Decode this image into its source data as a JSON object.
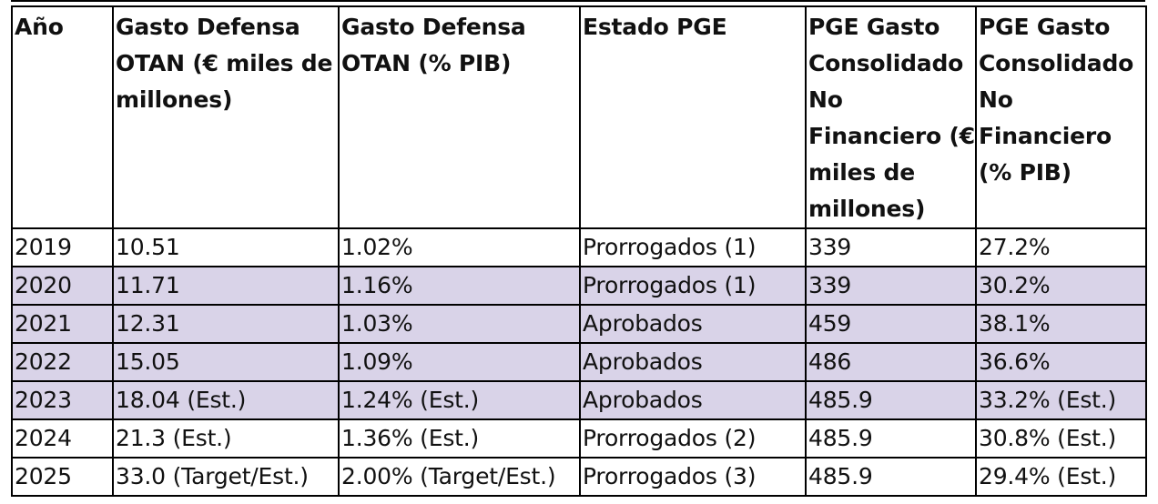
{
  "table": {
    "headers": [
      "Año",
      "Gasto Defensa OTAN (€ miles de millones)",
      "Gasto Defensa OTAN (% PIB)",
      "Estado PGE",
      "PGE Gasto Consolidado No Financiero (€ miles de millones)",
      "PGE Gasto Consolidado No Financiero (% PIB)"
    ],
    "rows": [
      [
        "2019",
        "10.51",
        "1.02%",
        "Prorrogados (1)",
        "339",
        "27.2%"
      ],
      [
        "2020",
        "11.71",
        "1.16%",
        "Prorrogados (1)",
        "339",
        "30.2%"
      ],
      [
        "2021",
        "12.31",
        "1.03%",
        "Aprobados",
        "459",
        "38.1%"
      ],
      [
        "2022",
        "15.05",
        "1.09%",
        "Aprobados",
        "486",
        "36.6%"
      ],
      [
        "2023",
        "18.04 (Est.)",
        "1.24% (Est.)",
        "Aprobados",
        "485.9",
        "33.2% (Est.)"
      ],
      [
        "2024",
        "21.3 (Est.)",
        "1.36% (Est.)",
        "Prorrogados (2)",
        "485.9",
        "30.8% (Est.)"
      ],
      [
        "2025",
        "33.0 (Target/Est.)",
        "2.00% (Target/Est.)",
        "Prorrogados (3)",
        "485.9",
        "29.4% (Est.)"
      ]
    ]
  },
  "colors": {
    "shaded_row": "#d9d3e8",
    "border": "#000000",
    "background": "#ffffff"
  }
}
